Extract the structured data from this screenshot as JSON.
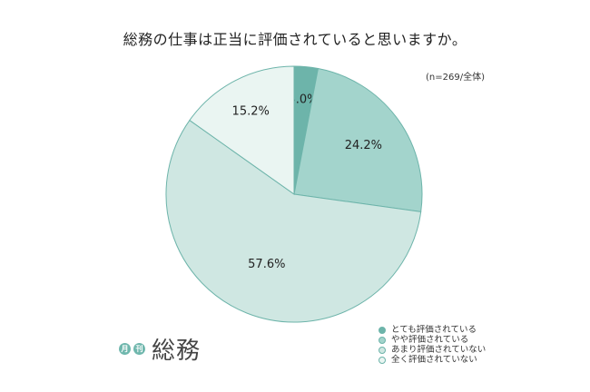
{
  "chart_data": {
    "type": "pie",
    "title": "総務の仕事は正当に評価されていると思いますか。",
    "note": "(n=269/全体)",
    "categories": [
      "とても評価されている",
      "やや評価されている",
      "あまり評価されていない",
      "全く評価されていない"
    ],
    "values": [
      3.0,
      24.2,
      57.6,
      15.2
    ],
    "value_labels": [
      "3.0%",
      "24.2%",
      "57.6%",
      "15.2%"
    ],
    "colors": [
      "#6db4aa",
      "#a3d4cc",
      "#cfe7e2",
      "#eaf5f2"
    ],
    "stroke_color": "#6db4aa",
    "legend_position": "bottom-right",
    "start_angle": "12 o'clock",
    "direction": "clockwise"
  },
  "logo": {
    "badge_1": "月",
    "badge_2": "刊",
    "word": "総務"
  }
}
